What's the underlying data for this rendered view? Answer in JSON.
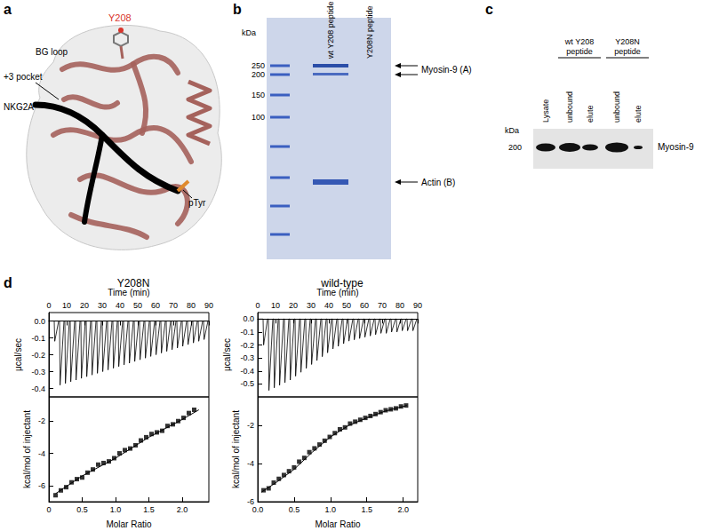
{
  "panels": {
    "a": {
      "letter": "a",
      "labels": {
        "residue": "Y208",
        "loop": "BG loop",
        "pocket": "+3 pocket",
        "peptide": "NKG2A",
        "phospho": "pTyr"
      }
    },
    "b": {
      "letter": "b",
      "unit": "kDa",
      "markers": [
        250,
        200,
        150,
        100
      ],
      "lanes": [
        "wt Y208 peptide",
        "Y208N peptide"
      ],
      "bands": [
        "Myosin-9 (A)",
        "Actin (B)"
      ]
    },
    "c": {
      "letter": "c",
      "unit": "kDa",
      "marker": 200,
      "lanes": [
        "Lysate",
        "unbound",
        "elute",
        "unbound",
        "elute"
      ],
      "groups": [
        [
          "wt Y208",
          "peptide"
        ],
        [
          "Y208N",
          "peptide"
        ]
      ],
      "band": "Myosin-9"
    },
    "d": {
      "letter": "d"
    }
  },
  "chart_data": [
    {
      "type": "line",
      "title": "Y208N",
      "x_label": "Time (min)",
      "y_label": "μcal/sec",
      "x": [
        0,
        3,
        3.3,
        5.5,
        6,
        6.3,
        8.5,
        9,
        9.3,
        11.5,
        12,
        12.3,
        14.5,
        15,
        15.3,
        17.5,
        18,
        18.3,
        20.5,
        21,
        21.3,
        23.5,
        24,
        24.3,
        26.5,
        27,
        27.3,
        29.5,
        30,
        30.3,
        32.5,
        33,
        33.3,
        35.5,
        36,
        36.3,
        38.5,
        39,
        39.3,
        41.5,
        42,
        42.3,
        44.5,
        45,
        45.3,
        47.5,
        48,
        48.3,
        50.5,
        51,
        51.3,
        53.5,
        54,
        54.3,
        56.5,
        57,
        57.3,
        59.5,
        60,
        60.3,
        62.5,
        63,
        63.3,
        65.5,
        66,
        66.3,
        68.5,
        69,
        69.3,
        71.5,
        72,
        72.3,
        74.5,
        75,
        75.3,
        77.5,
        78,
        78.3,
        80.5,
        81,
        81.3,
        83.5,
        84,
        84.3,
        86.5,
        87,
        87.3,
        89.5
      ],
      "series": [
        {
          "color": "#000000",
          "values": [
            0,
            0,
            -0.12,
            0,
            0,
            -0.38,
            0,
            0,
            -0.37,
            0,
            0,
            -0.36,
            0,
            0,
            -0.35,
            0,
            0,
            -0.34,
            0,
            0,
            -0.33,
            0,
            0,
            -0.32,
            0,
            0,
            -0.31,
            0,
            0,
            -0.3,
            0,
            0,
            -0.29,
            0,
            0,
            -0.28,
            0,
            0,
            -0.27,
            0,
            0,
            -0.26,
            0,
            0,
            -0.25,
            0,
            0,
            -0.24,
            0,
            0,
            -0.23,
            0,
            0,
            -0.22,
            0,
            0,
            -0.21,
            0,
            0,
            -0.2,
            0,
            0,
            -0.19,
            0,
            0,
            -0.18,
            0,
            0,
            -0.17,
            0,
            0,
            -0.16,
            0,
            0,
            -0.15,
            0,
            0,
            -0.14,
            0,
            0,
            -0.13,
            0,
            0,
            -0.12,
            0,
            0,
            -0.11,
            0
          ]
        }
      ],
      "xlim": [
        0,
        90
      ],
      "xticks": [
        0,
        10,
        20,
        30,
        40,
        50,
        60,
        70,
        80,
        90
      ],
      "ylim": [
        -0.45,
        0.05
      ],
      "yticks": [
        -0.4,
        -0.3,
        -0.2,
        -0.1,
        {
          "value": 0,
          "label": "0.0"
        }
      ]
    },
    {
      "type": "scatter",
      "x_label": "Molar Ratio",
      "y_label": "kcal/mol of injectant",
      "series": [
        {
          "type": "scatter",
          "marker": "square",
          "color": "#000000",
          "x": [
            0.1,
            0.18,
            0.26,
            0.34,
            0.42,
            0.5,
            0.58,
            0.66,
            0.74,
            0.82,
            0.9,
            0.98,
            1.06,
            1.14,
            1.22,
            1.3,
            1.38,
            1.46,
            1.54,
            1.62,
            1.7,
            1.78,
            1.86,
            1.94,
            2.02,
            2.1,
            2.18
          ],
          "values": [
            -6.6,
            -6.3,
            -6.1,
            -5.8,
            -5.6,
            -5.5,
            -5.2,
            -5.0,
            -4.7,
            -4.6,
            -4.5,
            -4.3,
            -4.0,
            -3.8,
            -3.7,
            -3.5,
            -3.2,
            -3.0,
            -2.8,
            -2.7,
            -2.6,
            -2.3,
            -2.2,
            -2.0,
            -1.8,
            -1.5,
            -1.3
          ]
        },
        {
          "type": "line",
          "line_style": "solid",
          "color": "#000000",
          "x": [
            0.1,
            0.5,
            1.0,
            1.5,
            2.0,
            2.25
          ],
          "values": [
            -6.5,
            -5.4,
            -4.3,
            -3.0,
            -1.9,
            -1.3
          ]
        }
      ],
      "xlim": [
        0,
        2.4
      ],
      "xticks": [
        0,
        0.5,
        {
          "value": 1,
          "label": "1.0"
        },
        1.5,
        {
          "value": 2,
          "label": "2.0"
        }
      ],
      "ylim": [
        -7,
        -0.5
      ],
      "yticks": [
        -6,
        -4,
        -2
      ]
    },
    {
      "type": "line",
      "title": "wild-type",
      "x_label": "Time (min)",
      "y_label": "μcal/sec",
      "x": [
        0,
        3,
        3.3,
        5.5,
        6,
        6.3,
        8.5,
        9,
        9.3,
        11.5,
        12,
        12.3,
        14.5,
        15,
        15.3,
        17.5,
        18,
        18.3,
        20.5,
        21,
        21.3,
        23.5,
        24,
        24.3,
        26.5,
        27,
        27.3,
        29.5,
        30,
        30.3,
        32.5,
        33,
        33.3,
        35.5,
        36,
        36.3,
        38.5,
        39,
        39.3,
        41.5,
        42,
        42.3,
        44.5,
        45,
        45.3,
        47.5,
        48,
        48.3,
        50.5,
        51,
        51.3,
        53.5,
        54,
        54.3,
        56.5,
        57,
        57.3,
        59.5,
        60,
        60.3,
        62.5,
        63,
        63.3,
        65.5,
        66,
        66.3,
        68.5,
        69,
        69.3,
        71.5,
        72,
        72.3,
        74.5,
        75,
        75.3,
        77.5,
        78,
        78.3,
        80.5,
        81,
        81.3,
        83.5,
        84,
        84.3,
        86.5,
        87,
        87.3,
        89.5
      ],
      "series": [
        {
          "color": "#000000",
          "values": [
            0,
            0,
            -0.2,
            0,
            0,
            -0.55,
            0,
            0,
            -0.53,
            0,
            0,
            -0.51,
            0,
            0,
            -0.49,
            0,
            0,
            -0.47,
            0,
            0,
            -0.44,
            0,
            0,
            -0.41,
            0,
            0,
            -0.38,
            0,
            0,
            -0.35,
            0,
            0,
            -0.32,
            0,
            0,
            -0.29,
            0,
            0,
            -0.26,
            0,
            0,
            -0.23,
            0,
            0,
            -0.21,
            0,
            0,
            -0.19,
            0,
            0,
            -0.17,
            0,
            0,
            -0.16,
            0,
            0,
            -0.15,
            0,
            0,
            -0.14,
            0,
            0,
            -0.13,
            0,
            0,
            -0.12,
            0,
            0,
            -0.11,
            0,
            0,
            -0.11,
            0,
            0,
            -0.1,
            0,
            0,
            -0.1,
            0,
            0,
            -0.09,
            0,
            0,
            -0.09,
            0,
            0,
            -0.09,
            0
          ]
        }
      ],
      "xlim": [
        0,
        90
      ],
      "xticks": [
        0,
        10,
        20,
        30,
        40,
        50,
        60,
        70,
        80,
        90
      ],
      "ylim": [
        -0.6,
        0.05
      ],
      "yticks": [
        -0.5,
        -0.4,
        -0.3,
        -0.2,
        -0.1,
        {
          "value": 0,
          "label": "0.0"
        }
      ]
    },
    {
      "type": "scatter",
      "x_label": "Molar Ratio",
      "y_label": "kcal/mol of injectant",
      "series": [
        {
          "type": "scatter",
          "marker": "square",
          "color": "#000000",
          "x": [
            0.08,
            0.15,
            0.22,
            0.29,
            0.36,
            0.43,
            0.5,
            0.57,
            0.64,
            0.71,
            0.78,
            0.85,
            0.92,
            0.99,
            1.06,
            1.13,
            1.2,
            1.27,
            1.34,
            1.41,
            1.48,
            1.55,
            1.62,
            1.69,
            1.76,
            1.83,
            1.9,
            1.97,
            2.04
          ],
          "values": [
            -5.4,
            -5.3,
            -5.0,
            -4.8,
            -4.6,
            -4.4,
            -4.2,
            -3.9,
            -3.7,
            -3.4,
            -3.2,
            -3.0,
            -2.8,
            -2.6,
            -2.4,
            -2.2,
            -2.1,
            -1.9,
            -1.8,
            -1.7,
            -1.6,
            -1.5,
            -1.4,
            -1.3,
            -1.2,
            -1.15,
            -1.1,
            -1.0,
            -0.95
          ]
        },
        {
          "type": "line",
          "line_style": "solid",
          "color": "#000000",
          "x": [
            0.05,
            0.25,
            0.5,
            0.75,
            1.0,
            1.25,
            1.5,
            1.75,
            2.05
          ],
          "values": [
            -5.5,
            -5.0,
            -4.3,
            -3.4,
            -2.6,
            -2.0,
            -1.6,
            -1.25,
            -0.95
          ]
        }
      ],
      "xlim": [
        0,
        2.2
      ],
      "xticks": [
        {
          "value": 0,
          "label": "0.0"
        },
        0.5,
        {
          "value": 1,
          "label": "1.0"
        },
        1.5,
        {
          "value": 2,
          "label": "2.0"
        }
      ],
      "ylim": [
        -6,
        -0.5
      ],
      "yticks": [
        -6,
        -4,
        -2
      ]
    }
  ]
}
